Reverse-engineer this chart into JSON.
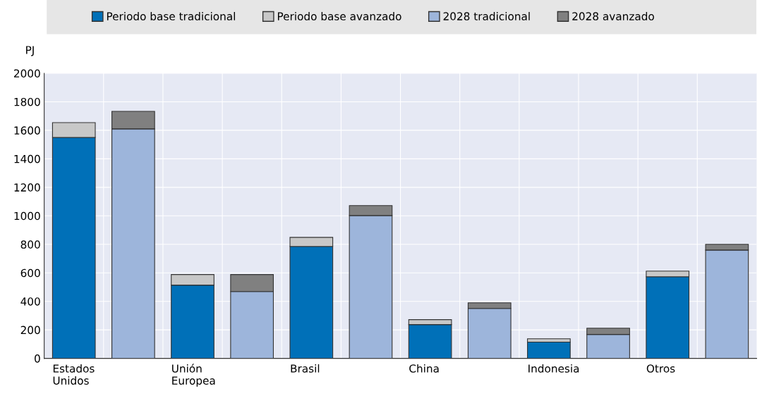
{
  "chart_data": {
    "type": "bar",
    "stacked": true,
    "ylabel": "PJ",
    "categories": [
      "Estados Unidos",
      null,
      "Unión Europea",
      null,
      "Brasil",
      null,
      "China",
      null,
      "Indonesia",
      null,
      "Otros",
      null
    ],
    "series": [
      {
        "name": "Periodo base tradicional",
        "color": "#0070b8",
        "values": [
          1550,
          null,
          514,
          null,
          785,
          null,
          237,
          null,
          114,
          null,
          573,
          null
        ]
      },
      {
        "name": "Periodo base avanzado",
        "color": "#c8c8c8",
        "values": [
          104,
          null,
          74,
          null,
          64,
          null,
          35,
          null,
          24,
          null,
          39,
          null
        ]
      },
      {
        "name": "2028 tradicional",
        "color": "#9db5db",
        "values": [
          null,
          1610,
          null,
          469,
          null,
          1002,
          null,
          350,
          null,
          168,
          null,
          760
        ]
      },
      {
        "name": "2028 avanzado",
        "color": "#808080",
        "values": [
          null,
          123,
          null,
          119,
          null,
          70,
          null,
          40,
          null,
          44,
          null,
          40
        ]
      }
    ],
    "ylim": [
      0,
      2000
    ],
    "yticks": [
      0,
      200,
      400,
      600,
      800,
      1000,
      1200,
      1400,
      1600,
      1800,
      2000
    ],
    "grid": true,
    "legend": "top"
  }
}
